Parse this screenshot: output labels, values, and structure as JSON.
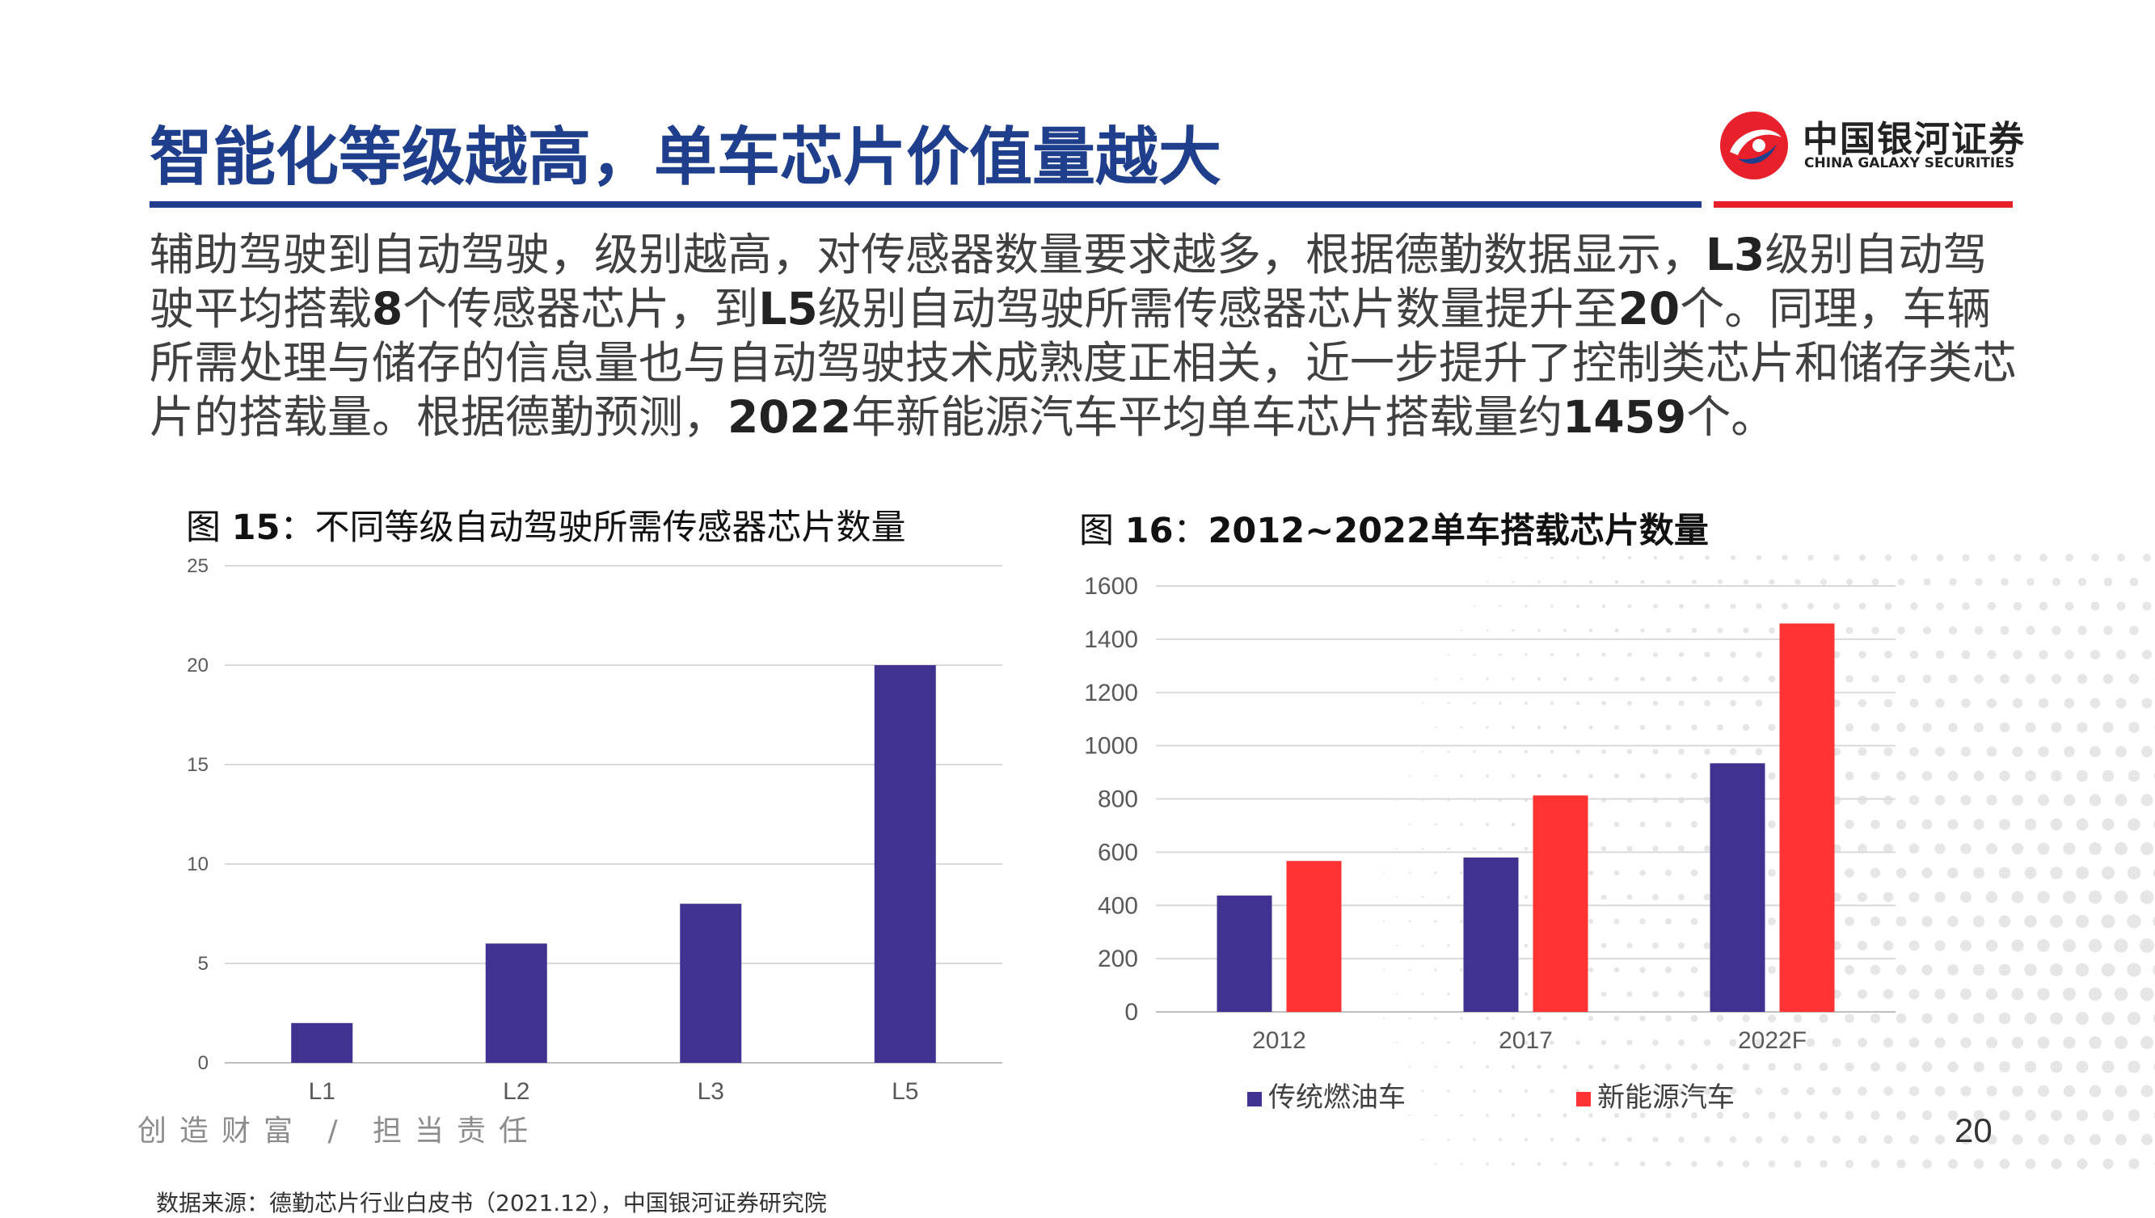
{
  "header": {
    "title": "智能化等级越高，单车芯片价值量越大",
    "logo_cn": "中国银河证券",
    "logo_en": "CHINA GALAXY SECURITIES"
  },
  "paragraph": {
    "p1": "辅助驾驶到自动驾驶，级别越高，对传感器数量要求越多，根据德勤数据显示，",
    "b1": "L3",
    "p2": "级别自动驾驶平均搭载",
    "b2": "8",
    "p3": "个传感器芯片，到",
    "b3": "L5",
    "p4": "级别自动驾驶所需传感器芯片数量提升至",
    "b4": "20",
    "p5": "个。同理，车辆所需处理与储存的信息量也与自动驾驶技术成熟度正相关，近一步提升了控制类芯片和储存类芯片的搭载量。根据德勤预测，",
    "b5": "2022",
    "p6": "年新能源汽车平均单车芯片搭载量约",
    "b6": "1459",
    "p7": "个。"
  },
  "fig15": {
    "prefix": "图 ",
    "num": "15",
    "sep": "：",
    "title": "不同等级自动驾驶所需传感器芯片数量"
  },
  "fig16": {
    "prefix": "图 ",
    "num": "16",
    "sep": "：",
    "title": "2012~2022单车搭载芯片数量"
  },
  "chart_data": [
    {
      "type": "bar",
      "categories": [
        "L1",
        "L2",
        "L3",
        "L5"
      ],
      "values": [
        2,
        6,
        8,
        20
      ],
      "ylim": [
        0,
        25
      ],
      "yticks": [
        0,
        5,
        10,
        15,
        20,
        25
      ],
      "color": "#3f3290",
      "grid": true
    },
    {
      "type": "bar",
      "categories": [
        "2012",
        "2017",
        "2022F"
      ],
      "series": [
        {
          "name": "传统燃油车",
          "values": [
            437,
            580,
            934
          ],
          "color": "#3f3290"
        },
        {
          "name": "新能源汽车",
          "values": [
            567,
            813,
            1459
          ],
          "color": "#ff3333"
        }
      ],
      "ylim": [
        0,
        1600
      ],
      "yticks": [
        0,
        200,
        400,
        600,
        800,
        1000,
        1200,
        1400,
        1600
      ],
      "legend": "bottom",
      "grid": true
    }
  ],
  "footer": {
    "slogan": "创造财富 / 担当责任",
    "page": "20",
    "source": "数据来源：德勤芯片行业白皮书（2021.12），中国银河证券研究院"
  }
}
